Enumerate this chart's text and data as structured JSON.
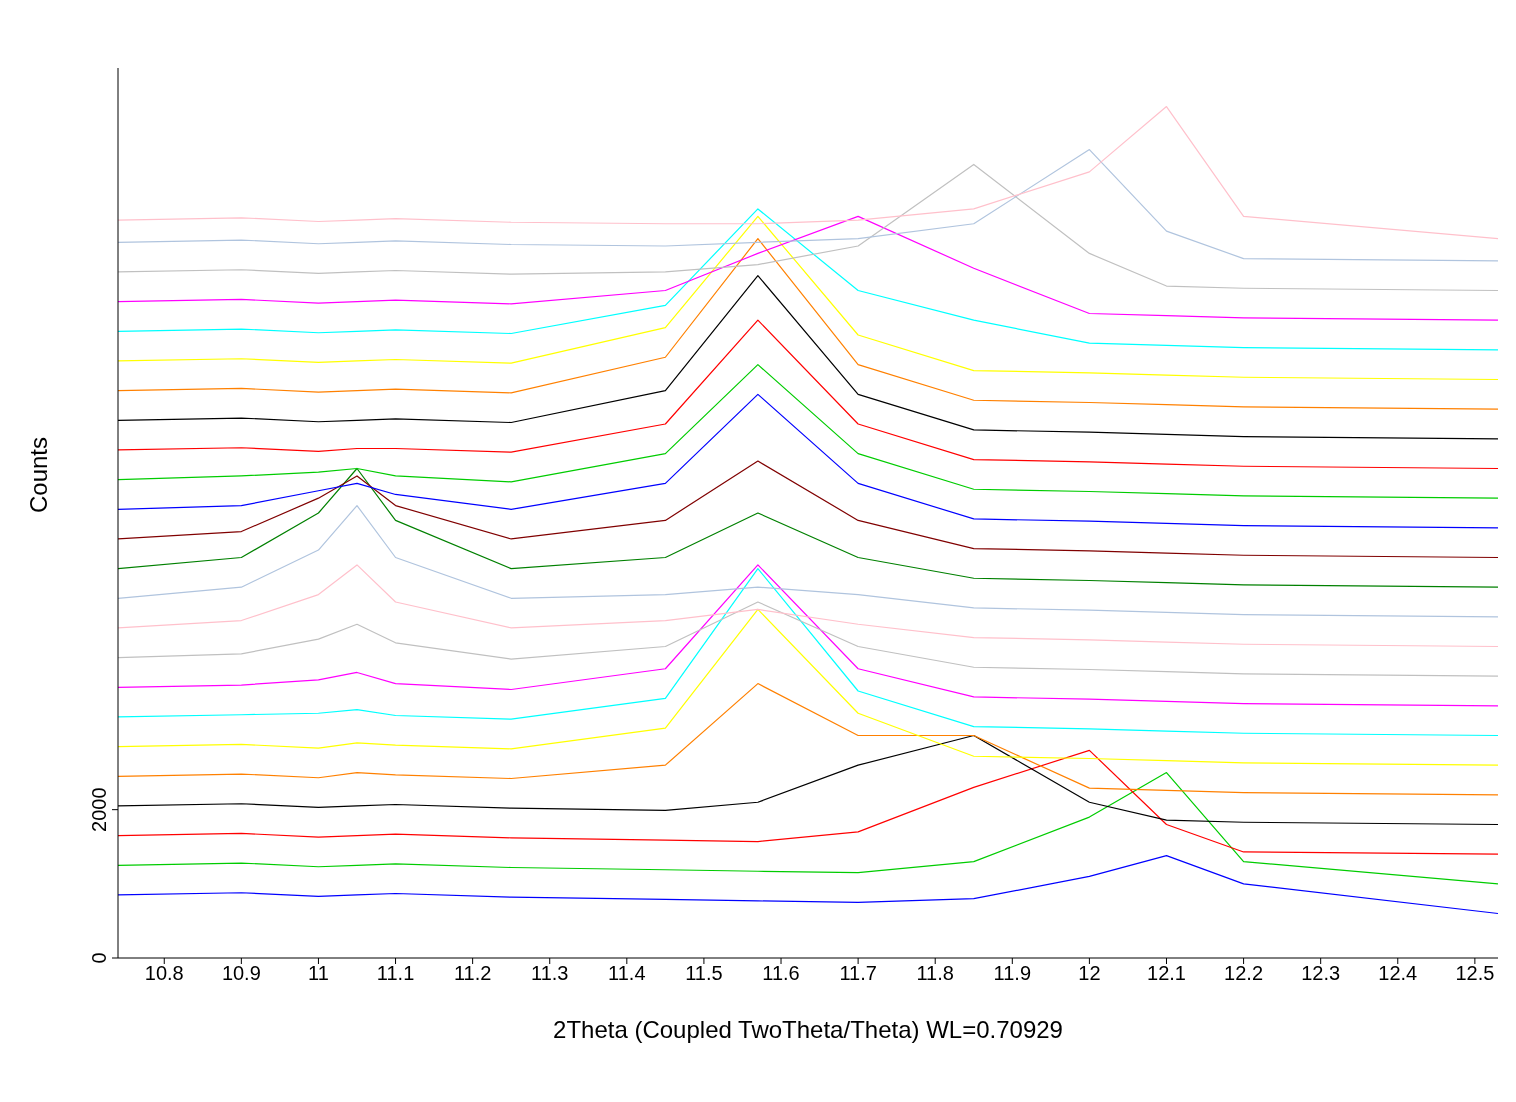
{
  "chart_data": {
    "type": "line",
    "xlabel": "2Theta (Coupled TwoTheta/Theta) WL=0.70929",
    "ylabel": "Counts",
    "x": [
      10.74,
      10.9,
      11.0,
      11.05,
      11.1,
      11.25,
      11.45,
      11.57,
      11.7,
      11.85,
      12.0,
      12.1,
      12.2,
      12.53
    ],
    "xlim": [
      10.74,
      12.53
    ],
    "xticks": [
      10.8,
      10.9,
      11,
      11.1,
      11.2,
      11.3,
      11.4,
      11.5,
      11.6,
      11.7,
      11.8,
      11.9,
      12,
      12.1,
      12.2,
      12.3,
      12.4,
      12.5
    ],
    "ylim": [
      0,
      12000
    ],
    "yticks": [
      0,
      2000
    ],
    "grid": false,
    "marker": "none",
    "line_style": "solid",
    "series": [
      {
        "color": "#0000ff",
        "values": [
          850,
          880,
          830,
          850,
          870,
          820,
          790,
          770,
          750,
          800,
          1100,
          1380,
          1000,
          600
        ]
      },
      {
        "color": "#00cc00",
        "values": [
          1250,
          1280,
          1230,
          1250,
          1270,
          1220,
          1190,
          1170,
          1150,
          1300,
          1900,
          2500,
          1300,
          1000
        ]
      },
      {
        "color": "#ff0000",
        "values": [
          1650,
          1680,
          1630,
          1650,
          1670,
          1620,
          1590,
          1570,
          1700,
          2300,
          2800,
          1800,
          1430,
          1400
        ]
      },
      {
        "color": "#000000",
        "values": [
          2050,
          2080,
          2030,
          2050,
          2070,
          2020,
          1990,
          2100,
          2600,
          3000,
          2100,
          1860,
          1830,
          1800
        ]
      },
      {
        "color": "#ff8000",
        "values": [
          2450,
          2480,
          2430,
          2500,
          2470,
          2420,
          2600,
          3700,
          3000,
          3000,
          2290,
          2260,
          2230,
          2200
        ]
      },
      {
        "color": "#ffff00",
        "values": [
          2850,
          2880,
          2830,
          2900,
          2870,
          2820,
          3100,
          4700,
          3300,
          2720,
          2690,
          2660,
          2630,
          2600
        ]
      },
      {
        "color": "#00ffff",
        "values": [
          3250,
          3280,
          3300,
          3350,
          3270,
          3220,
          3500,
          5250,
          3600,
          3120,
          3090,
          3060,
          3030,
          3000
        ]
      },
      {
        "color": "#ff00ff",
        "values": [
          3650,
          3680,
          3750,
          3850,
          3700,
          3620,
          3900,
          5300,
          3900,
          3520,
          3490,
          3460,
          3430,
          3400
        ]
      },
      {
        "color": "#c0c0c0",
        "values": [
          4050,
          4100,
          4300,
          4500,
          4250,
          4030,
          4200,
          4800,
          4200,
          3920,
          3890,
          3860,
          3830,
          3800
        ]
      },
      {
        "color": "#ffc0cb",
        "values": [
          4450,
          4550,
          4900,
          5300,
          4800,
          4450,
          4550,
          4700,
          4500,
          4320,
          4290,
          4260,
          4230,
          4200
        ]
      },
      {
        "color": "#b0c4de",
        "values": [
          4850,
          5000,
          5500,
          6100,
          5400,
          4850,
          4900,
          5000,
          4900,
          4720,
          4690,
          4660,
          4630,
          4600
        ]
      },
      {
        "color": "#008000",
        "values": [
          5250,
          5400,
          6000,
          6600,
          5900,
          5250,
          5400,
          6000,
          5400,
          5120,
          5090,
          5060,
          5030,
          5000
        ]
      },
      {
        "color": "#800000",
        "values": [
          5650,
          5750,
          6200,
          6500,
          6100,
          5650,
          5900,
          6700,
          5900,
          5520,
          5490,
          5460,
          5430,
          5400
        ]
      },
      {
        "color": "#0000ff",
        "values": [
          6050,
          6100,
          6300,
          6400,
          6250,
          6050,
          6400,
          7600,
          6400,
          5920,
          5890,
          5860,
          5830,
          5800
        ]
      },
      {
        "color": "#00cc00",
        "values": [
          6450,
          6500,
          6550,
          6600,
          6500,
          6420,
          6800,
          8000,
          6800,
          6320,
          6290,
          6260,
          6230,
          6200
        ]
      },
      {
        "color": "#ff0000",
        "values": [
          6850,
          6880,
          6830,
          6870,
          6870,
          6820,
          7200,
          8600,
          7200,
          6720,
          6690,
          6660,
          6630,
          6600
        ]
      },
      {
        "color": "#000000",
        "values": [
          7250,
          7280,
          7230,
          7250,
          7270,
          7220,
          7650,
          9200,
          7600,
          7120,
          7090,
          7060,
          7030,
          7000
        ]
      },
      {
        "color": "#ff8000",
        "values": [
          7650,
          7680,
          7630,
          7650,
          7670,
          7620,
          8100,
          9700,
          8000,
          7520,
          7490,
          7460,
          7430,
          7400
        ]
      },
      {
        "color": "#ffff00",
        "values": [
          8050,
          8080,
          8030,
          8050,
          8070,
          8020,
          8500,
          10000,
          8400,
          7920,
          7890,
          7860,
          7830,
          7800
        ]
      },
      {
        "color": "#00ffff",
        "values": [
          8450,
          8480,
          8430,
          8450,
          8470,
          8420,
          8800,
          10100,
          9000,
          8600,
          8290,
          8260,
          8230,
          8200
        ]
      },
      {
        "color": "#ff00ff",
        "values": [
          8850,
          8880,
          8830,
          8850,
          8870,
          8820,
          9000,
          9500,
          10000,
          9300,
          8690,
          8660,
          8630,
          8600
        ]
      },
      {
        "color": "#c0c0c0",
        "values": [
          9250,
          9280,
          9230,
          9250,
          9270,
          9220,
          9250,
          9350,
          9600,
          10700,
          9500,
          9060,
          9030,
          9000
        ]
      },
      {
        "color": "#b0c4de",
        "values": [
          9650,
          9680,
          9630,
          9650,
          9670,
          9620,
          9600,
          9650,
          9700,
          9900,
          10900,
          9800,
          9430,
          9400
        ]
      },
      {
        "color": "#ffc0cb",
        "values": [
          9950,
          9980,
          9930,
          9950,
          9970,
          9920,
          9900,
          9900,
          9950,
          10100,
          10600,
          11480,
          10000,
          9700
        ]
      }
    ]
  }
}
